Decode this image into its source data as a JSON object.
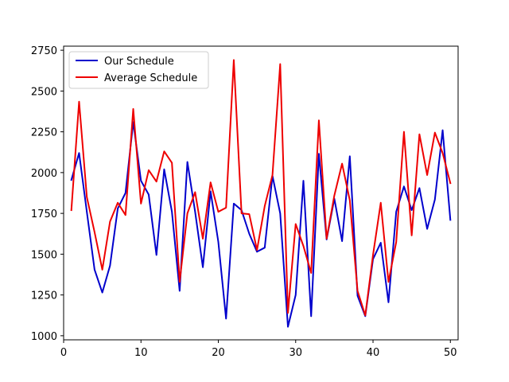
{
  "chart_data": {
    "type": "line",
    "x": [
      1,
      2,
      3,
      4,
      5,
      6,
      7,
      8,
      9,
      10,
      11,
      12,
      13,
      14,
      15,
      16,
      17,
      18,
      19,
      20,
      21,
      22,
      23,
      24,
      25,
      26,
      27,
      28,
      29,
      30,
      31,
      32,
      33,
      34,
      35,
      36,
      37,
      38,
      39,
      40,
      41,
      42,
      43,
      44,
      45,
      46,
      47,
      48,
      49,
      50
    ],
    "series": [
      {
        "name": "Our Schedule",
        "color": "#0000cc",
        "values": [
          1955,
          2120,
          1760,
          1405,
          1265,
          1430,
          1780,
          1875,
          2310,
          1950,
          1865,
          1495,
          2020,
          1760,
          1275,
          2065,
          1760,
          1420,
          1885,
          1575,
          1105,
          1810,
          1770,
          1625,
          1515,
          1540,
          1980,
          1750,
          1055,
          1250,
          1950,
          1120,
          2115,
          1590,
          1840,
          1580,
          2100,
          1245,
          1120,
          1470,
          1570,
          1205,
          1760,
          1915,
          1770,
          1905,
          1655,
          1835,
          2260,
          1710
        ]
      },
      {
        "name": "Average Schedule",
        "color": "#ee0000",
        "values": [
          1770,
          2435,
          1850,
          1635,
          1405,
          1700,
          1815,
          1740,
          2390,
          1810,
          2015,
          1945,
          2130,
          2060,
          1330,
          1750,
          1880,
          1595,
          1940,
          1760,
          1785,
          2690,
          1750,
          1745,
          1525,
          1795,
          1985,
          2665,
          1140,
          1685,
          1550,
          1385,
          2320,
          1595,
          1860,
          2055,
          1830,
          1275,
          1125,
          1495,
          1815,
          1330,
          1575,
          2250,
          1615,
          2235,
          1985,
          2245,
          2120,
          1935
        ]
      }
    ],
    "xlim": [
      0,
      51
    ],
    "ylim": [
      975,
      2775
    ],
    "xticks": [
      0,
      10,
      20,
      30,
      40,
      50
    ],
    "yticks": [
      1000,
      1250,
      1500,
      1750,
      2000,
      2250,
      2500,
      2750
    ],
    "title": "",
    "xlabel": "",
    "ylabel": "",
    "grid": false,
    "legend_placement": "top-left"
  }
}
